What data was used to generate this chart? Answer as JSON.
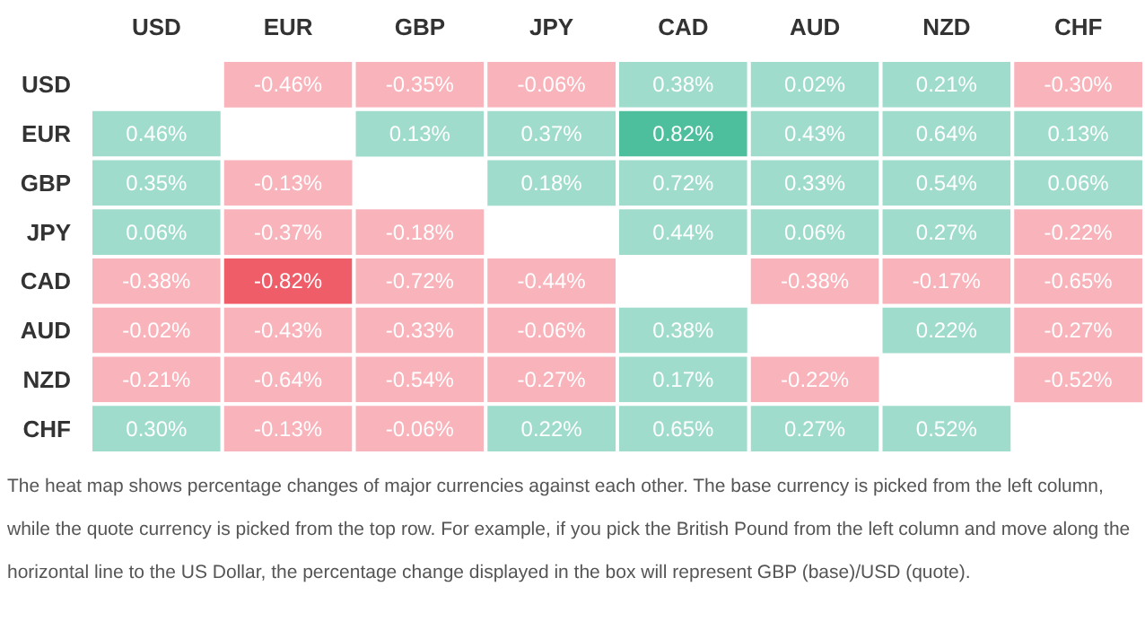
{
  "chart_data": {
    "type": "heatmap",
    "categories": [
      "USD",
      "EUR",
      "GBP",
      "JPY",
      "CAD",
      "AUD",
      "NZD",
      "CHF"
    ],
    "y_categories": [
      "USD",
      "EUR",
      "GBP",
      "JPY",
      "CAD",
      "AUD",
      "NZD",
      "CHF"
    ],
    "cells": [
      [
        null,
        -0.46,
        -0.35,
        -0.06,
        0.38,
        0.02,
        0.21,
        -0.3
      ],
      [
        0.46,
        null,
        0.13,
        0.37,
        0.82,
        0.43,
        0.64,
        0.13
      ],
      [
        0.35,
        -0.13,
        null,
        0.18,
        0.72,
        0.33,
        0.54,
        0.06
      ],
      [
        0.06,
        -0.37,
        -0.18,
        null,
        0.44,
        0.06,
        0.27,
        -0.22
      ],
      [
        -0.38,
        -0.82,
        -0.72,
        -0.44,
        null,
        -0.38,
        -0.17,
        -0.65
      ],
      [
        -0.02,
        -0.43,
        -0.33,
        -0.06,
        0.38,
        null,
        0.22,
        -0.27
      ],
      [
        -0.21,
        -0.64,
        -0.54,
        -0.27,
        0.17,
        -0.22,
        null,
        -0.52
      ],
      [
        0.3,
        -0.13,
        -0.06,
        0.22,
        0.65,
        0.27,
        0.52,
        null
      ]
    ],
    "cell_labels": [
      [
        null,
        "-0.46%",
        "-0.35%",
        "-0.06%",
        "0.38%",
        "0.02%",
        "0.21%",
        "-0.30%"
      ],
      [
        "0.46%",
        null,
        "0.13%",
        "0.37%",
        "0.82%",
        "0.43%",
        "0.64%",
        "0.13%"
      ],
      [
        "0.35%",
        "-0.13%",
        null,
        "0.18%",
        "0.72%",
        "0.33%",
        "0.54%",
        "0.06%"
      ],
      [
        "0.06%",
        "-0.37%",
        "-0.18%",
        null,
        "0.44%",
        "0.06%",
        "0.27%",
        "-0.22%"
      ],
      [
        "-0.38%",
        "-0.82%",
        "-0.72%",
        "-0.44%",
        null,
        "-0.38%",
        "-0.17%",
        "-0.65%"
      ],
      [
        "-0.02%",
        "-0.43%",
        "-0.33%",
        "-0.06%",
        "0.38%",
        null,
        "0.22%",
        "-0.27%"
      ],
      [
        "-0.21%",
        "-0.64%",
        "-0.54%",
        "-0.27%",
        "0.17%",
        "-0.22%",
        null,
        "-0.52%"
      ],
      [
        "0.30%",
        "-0.13%",
        "-0.06%",
        "0.22%",
        "0.65%",
        "0.27%",
        "0.52%",
        null
      ]
    ],
    "annotations": [
      "The heat map shows percentage changes of major currencies against each other. The base currency is picked from the left column, while the quote currency is picked from the top row. For example, if you pick the British Pound from the left column and move along the horizontal line to the US Dollar, the percentage change displayed in the box will represent GBP (base)/USD (quote)."
    ]
  }
}
